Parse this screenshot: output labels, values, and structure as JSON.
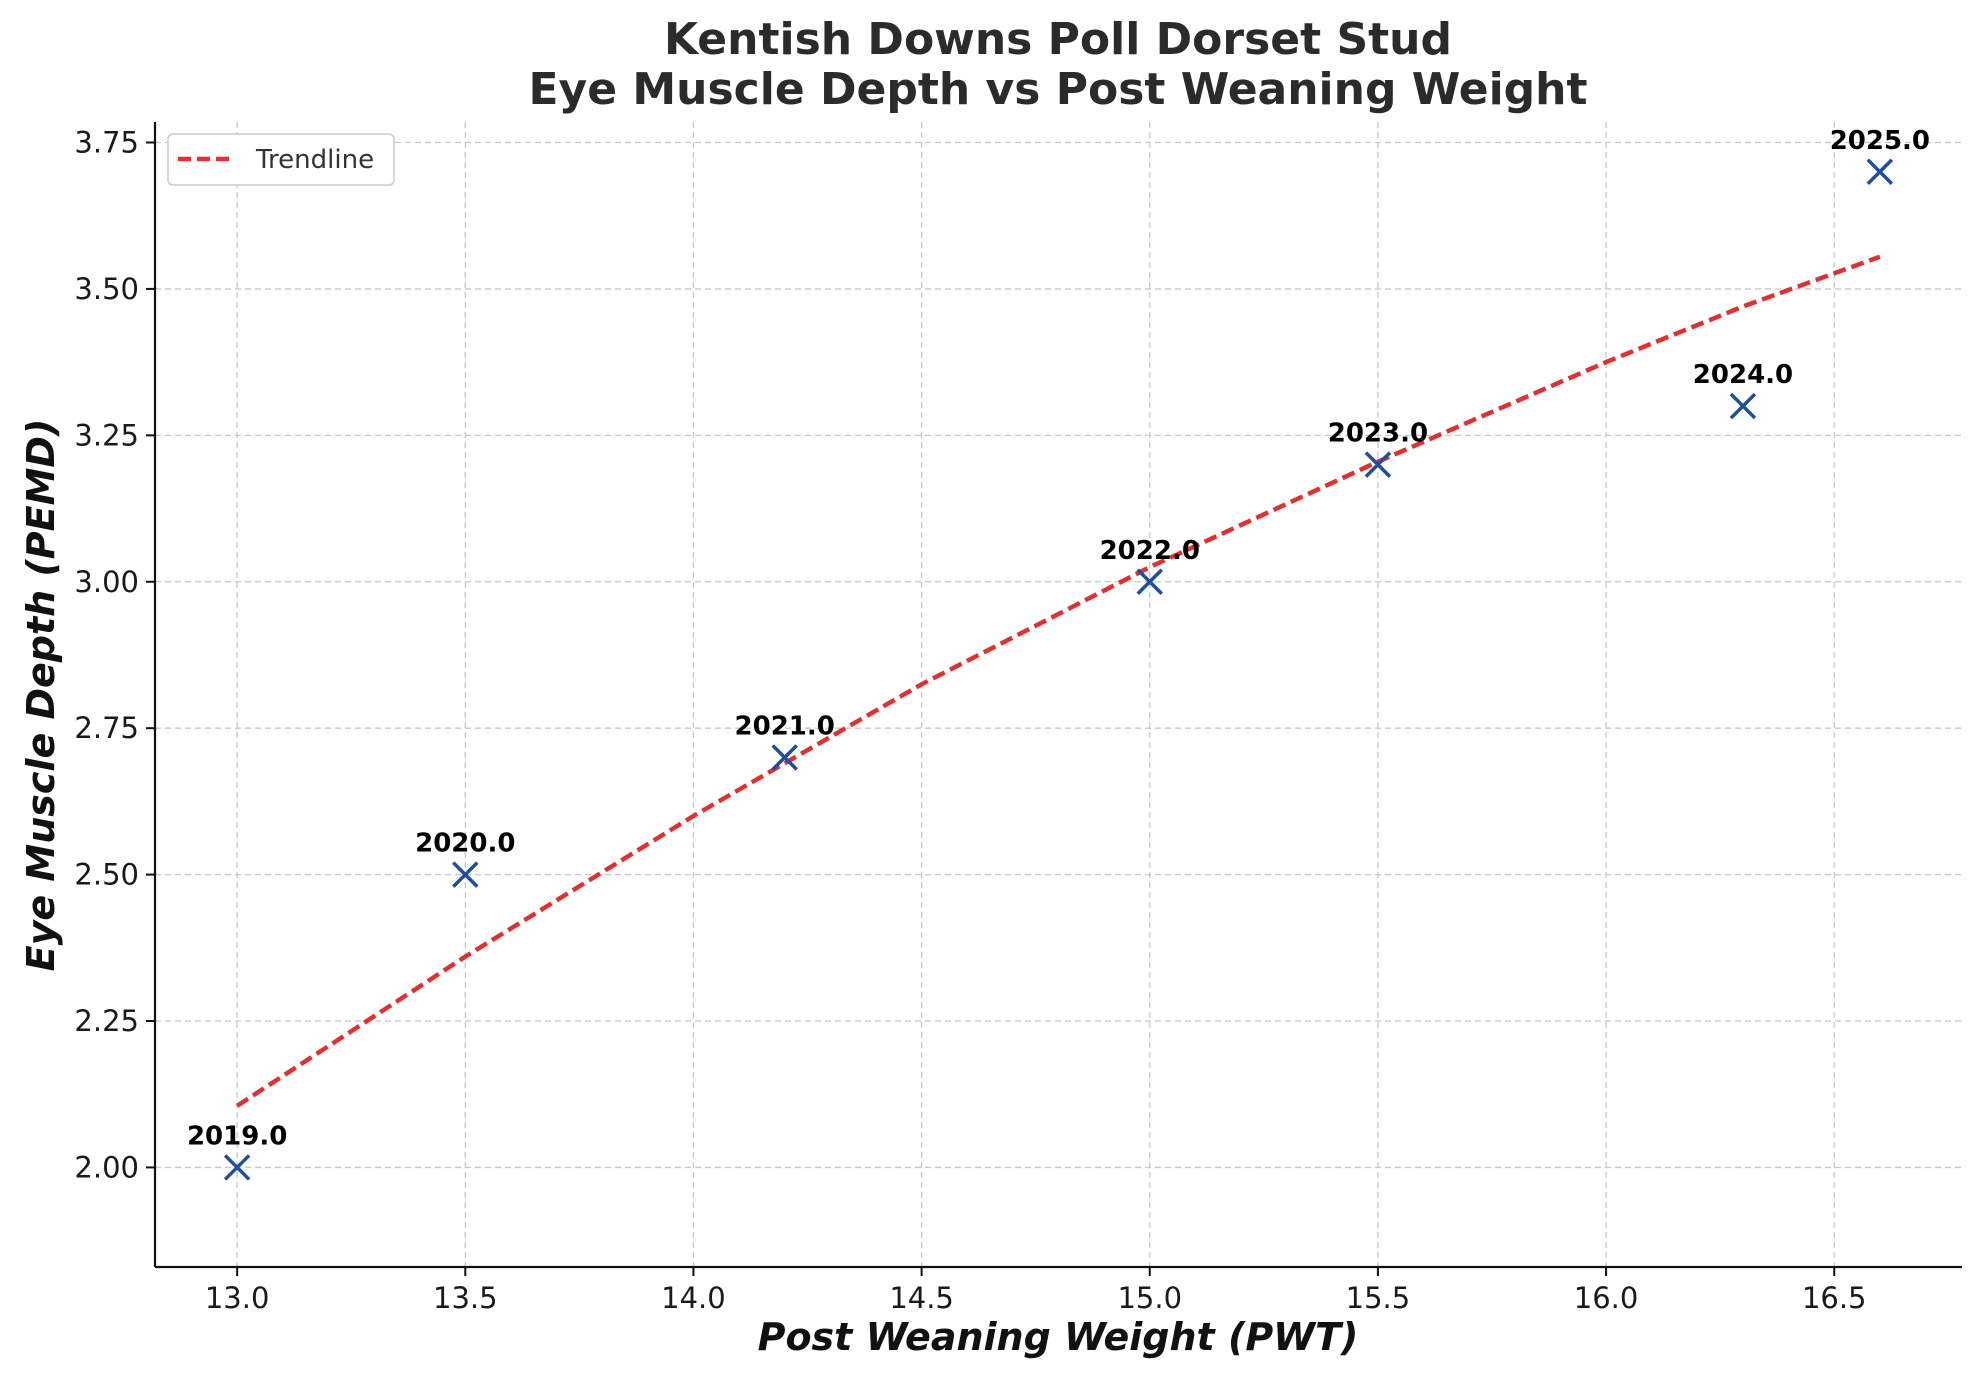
{
  "chart_data": {
    "type": "scatter",
    "title": [
      "Kentish Downs Poll Dorset Stud",
      "Eye Muscle Depth vs Post Weaning Weight"
    ],
    "xlabel": "Post Weaning Weight (PWT)",
    "ylabel": "Eye Muscle Depth (PEMD)",
    "xlim": [
      12.82,
      16.78
    ],
    "ylim": [
      1.83,
      3.785
    ],
    "xticks": [
      13.0,
      13.5,
      14.0,
      14.5,
      15.0,
      15.5,
      16.0,
      16.5
    ],
    "xtick_labels": [
      "13.0",
      "13.5",
      "14.0",
      "14.5",
      "15.0",
      "15.5",
      "16.0",
      "16.5"
    ],
    "yticks": [
      2.0,
      2.25,
      2.5,
      2.75,
      3.0,
      3.25,
      3.5,
      3.75
    ],
    "ytick_labels": [
      "2.00",
      "2.25",
      "2.50",
      "2.75",
      "3.00",
      "3.25",
      "3.50",
      "3.75"
    ],
    "grid": true,
    "legend_position": "top-left",
    "series": [
      {
        "kind": "scatter",
        "marker": "x",
        "color": "#1f4e9c",
        "points": [
          {
            "x": 13.0,
            "y": 2.0,
            "label": "2019.0"
          },
          {
            "x": 13.5,
            "y": 2.5,
            "label": "2020.0"
          },
          {
            "x": 14.2,
            "y": 2.7,
            "label": "2021.0"
          },
          {
            "x": 15.0,
            "y": 3.0,
            "label": "2022.0"
          },
          {
            "x": 15.5,
            "y": 3.2,
            "label": "2023.0"
          },
          {
            "x": 16.3,
            "y": 3.3,
            "label": "2024.0"
          },
          {
            "x": 16.6,
            "y": 3.7,
            "label": "2025.0"
          }
        ]
      },
      {
        "kind": "line",
        "name": "Trendline",
        "style": "dashed",
        "color": "#e03030",
        "x": [
          13.0,
          13.5,
          14.0,
          14.2,
          14.5,
          15.0,
          15.5,
          16.0,
          16.3,
          16.6
        ],
        "y": [
          2.105,
          2.36,
          2.6,
          2.69,
          2.825,
          3.025,
          3.205,
          3.375,
          3.47,
          3.555
        ]
      }
    ]
  }
}
